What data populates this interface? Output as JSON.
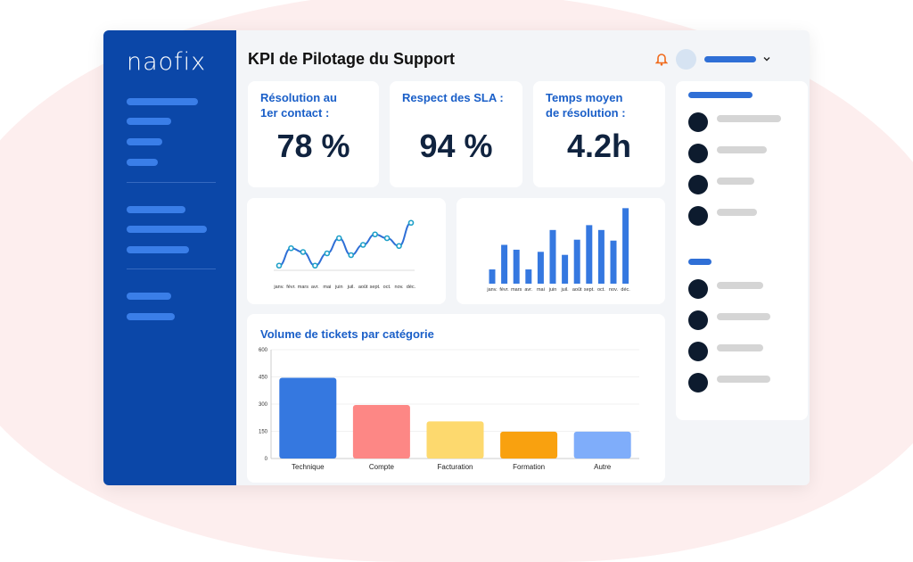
{
  "app": {
    "logo": "naofix",
    "title": "KPI de Pilotage du Support"
  },
  "header": {
    "bell_icon": "bell-icon",
    "accent": "#f06a1b"
  },
  "kpis": [
    {
      "label": "Résolution au 1er contact :",
      "value": "78 %"
    },
    {
      "label": "Respect des SLA :",
      "value": "94 %"
    },
    {
      "label": "Temps moyen de résolution :",
      "value": "4.2h"
    }
  ],
  "chart_data": [
    {
      "type": "line",
      "categories": [
        "janv.",
        "févr.",
        "mars",
        "avr.",
        "mai",
        "juin",
        "juil.",
        "août",
        "sept.",
        "oct.",
        "nov.",
        "déc."
      ],
      "values": [
        17,
        95,
        78,
        17,
        72,
        140,
        64,
        110,
        157,
        140,
        105,
        209
      ],
      "color": "#2f6fd6"
    },
    {
      "type": "bar",
      "categories": [
        "janv.",
        "févr.",
        "mars",
        "avr.",
        "mai",
        "juin",
        "juil.",
        "août",
        "sept.",
        "oct.",
        "nov.",
        "déc."
      ],
      "values": [
        47,
        128,
        112,
        47,
        105,
        177,
        95,
        145,
        193,
        177,
        142,
        249
      ],
      "color": "#3578e0"
    },
    {
      "type": "bar",
      "title": "Volume de tickets par catégorie",
      "categories": [
        "Technique",
        "Compte",
        "Facturation",
        "Formation",
        "Autre"
      ],
      "values": [
        445,
        295,
        205,
        148,
        148
      ],
      "colors": [
        "#3578e0",
        "#fd8785",
        "#fdd96e",
        "#f9a10f",
        "#7fadfa"
      ],
      "ylim": [
        0,
        600
      ],
      "yticks": [
        0,
        150,
        300,
        450,
        600
      ],
      "grid": true
    }
  ]
}
